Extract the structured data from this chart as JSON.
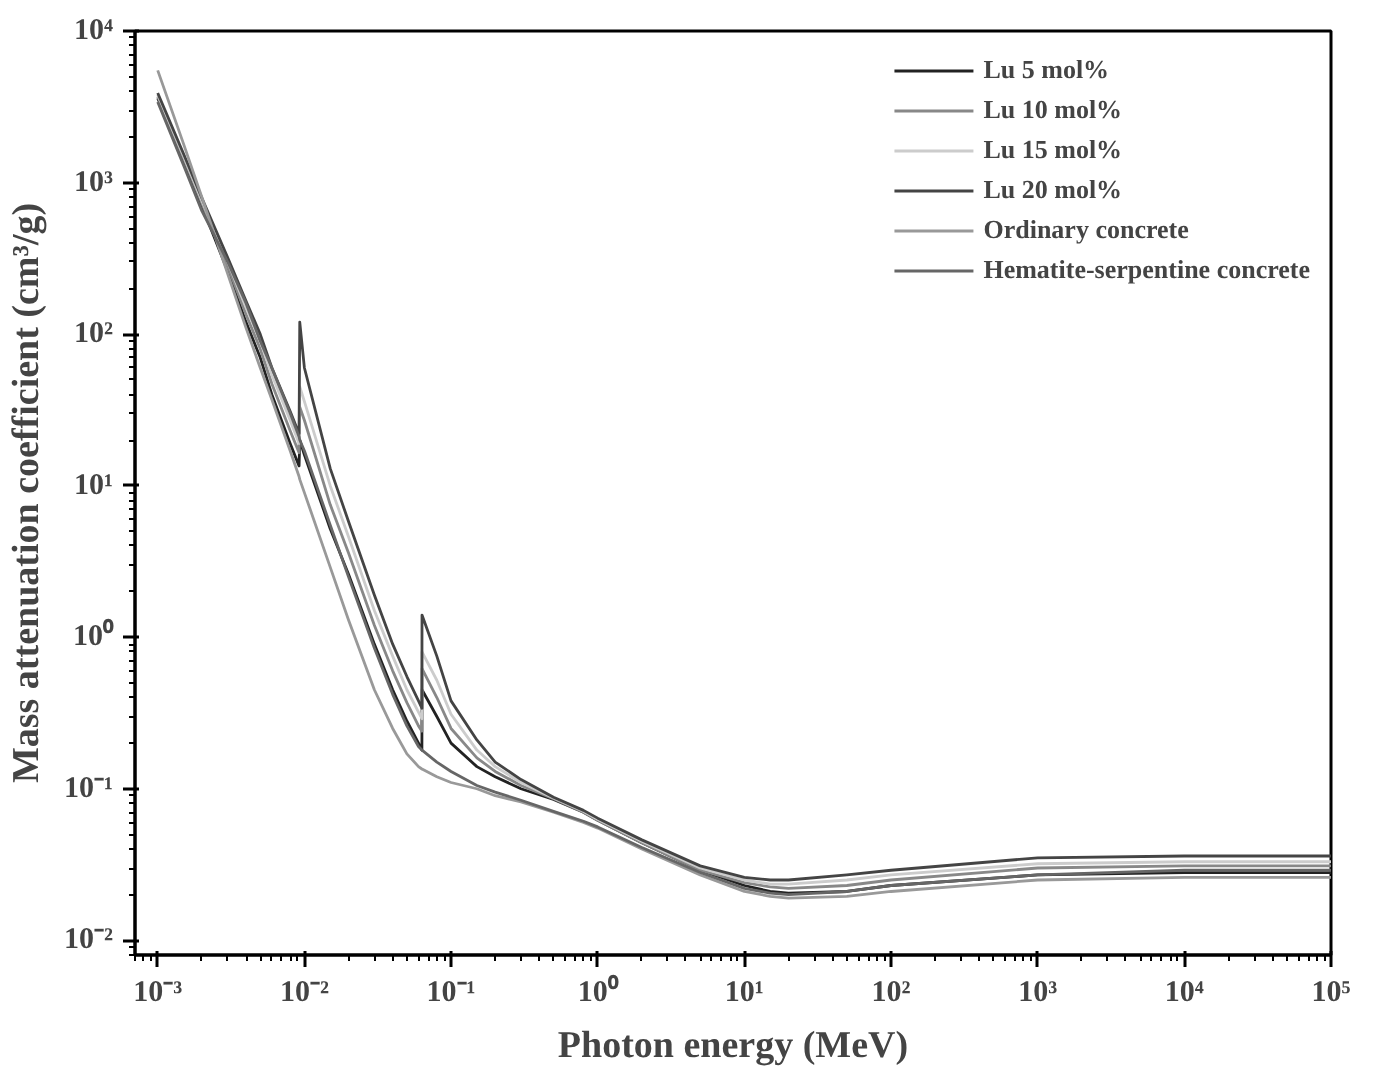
{
  "chart_data": {
    "type": "line",
    "xlabel": "Photon energy (MeV)",
    "ylabel": "Mass attenuation coefficient (cm³/g)",
    "log": "xy",
    "grid": false,
    "legend": "top right",
    "marker": "none",
    "line_style": "solid",
    "x": [
      0.001,
      0.0015,
      0.002,
      0.003,
      0.004,
      0.005,
      0.006,
      0.008,
      0.0092,
      0.0093,
      0.01,
      0.015,
      0.02,
      0.03,
      0.04,
      0.05,
      0.06,
      0.0633,
      0.0634,
      0.08,
      0.1,
      0.15,
      0.2,
      0.3,
      0.5,
      0.8,
      1,
      2,
      5,
      10,
      15,
      20,
      50,
      100,
      1000,
      10000,
      100000
    ],
    "xlim": [
      0.0007,
      100000
    ],
    "ylim": [
      0.008,
      10000
    ],
    "xticks": [
      {
        "value": 0.001,
        "label": "10⁻³"
      },
      {
        "value": 0.01,
        "label": "10⁻²"
      },
      {
        "value": 0.1,
        "label": "10⁻¹"
      },
      {
        "value": 1,
        "label": "10⁰"
      },
      {
        "value": 10,
        "label": "10¹"
      },
      {
        "value": 100,
        "label": "10²"
      },
      {
        "value": 1000,
        "label": "10³"
      },
      {
        "value": 10000,
        "label": "10⁴"
      },
      {
        "value": 100000,
        "label": "10⁵"
      }
    ],
    "yticks": [
      {
        "value": 0.01,
        "label": "10⁻²"
      },
      {
        "value": 0.1,
        "label": "10⁻¹"
      },
      {
        "value": 1,
        "label": "10⁰"
      },
      {
        "value": 10,
        "label": "10¹"
      },
      {
        "value": 100,
        "label": "10²"
      },
      {
        "value": 1000,
        "label": "10³"
      },
      {
        "value": 10000,
        "label": "10⁴"
      }
    ],
    "series": [
      {
        "name": "Lu 5 mol%",
        "color": "#222222",
        "values": [
          3600,
          1400,
          700,
          260,
          120,
          70,
          40,
          19,
          13.5,
          20,
          16,
          5.2,
          2.6,
          0.9,
          0.45,
          0.28,
          0.2,
          0.18,
          0.45,
          0.3,
          0.2,
          0.14,
          0.12,
          0.1,
          0.085,
          0.07,
          0.062,
          0.044,
          0.029,
          0.023,
          0.021,
          0.0205,
          0.021,
          0.023,
          0.027,
          0.028,
          0.028
        ]
      },
      {
        "name": "Lu 10 mol%",
        "color": "#888888",
        "values": [
          3700,
          1450,
          730,
          280,
          135,
          80,
          47,
          23,
          16.5,
          33,
          27,
          7.5,
          3.6,
          1.2,
          0.6,
          0.37,
          0.26,
          0.24,
          0.62,
          0.4,
          0.25,
          0.16,
          0.13,
          0.105,
          0.086,
          0.07,
          0.062,
          0.044,
          0.029,
          0.024,
          0.0225,
          0.022,
          0.023,
          0.025,
          0.03,
          0.031,
          0.031
        ]
      },
      {
        "name": "Lu 15 mol%",
        "color": "#cccccc",
        "values": [
          3800,
          1500,
          760,
          300,
          150,
          90,
          54,
          27,
          19,
          45,
          36,
          10,
          4.6,
          1.5,
          0.75,
          0.45,
          0.32,
          0.29,
          0.8,
          0.52,
          0.31,
          0.18,
          0.14,
          0.11,
          0.087,
          0.071,
          0.063,
          0.045,
          0.03,
          0.025,
          0.0235,
          0.0235,
          0.025,
          0.027,
          0.032,
          0.033,
          0.033
        ]
      },
      {
        "name": "Lu 20 mol%",
        "color": "#444444",
        "values": [
          3900,
          1550,
          790,
          320,
          165,
          100,
          60,
          31,
          22,
          120,
          60,
          13,
          5.8,
          1.9,
          0.9,
          0.55,
          0.38,
          0.34,
          1.4,
          0.75,
          0.38,
          0.21,
          0.15,
          0.115,
          0.088,
          0.072,
          0.064,
          0.046,
          0.031,
          0.026,
          0.025,
          0.025,
          0.027,
          0.029,
          0.035,
          0.036,
          0.036
        ]
      },
      {
        "name": "Ordinary concrete",
        "color": "#999999",
        "values": [
          5500,
          1800,
          800,
          250,
          110,
          60,
          37,
          17,
          11.5,
          11,
          9,
          2.9,
          1.3,
          0.45,
          0.25,
          0.17,
          0.14,
          0.135,
          0.135,
          0.12,
          0.11,
          0.1,
          0.09,
          0.082,
          0.07,
          0.06,
          0.055,
          0.04,
          0.027,
          0.021,
          0.0195,
          0.019,
          0.0195,
          0.021,
          0.025,
          0.026,
          0.026
        ]
      },
      {
        "name": "Hematite-serpentine concrete",
        "color": "#666666",
        "values": [
          3400,
          1300,
          650,
          300,
          160,
          90,
          60,
          30,
          21,
          20,
          17,
          5.5,
          2.5,
          0.85,
          0.42,
          0.26,
          0.19,
          0.18,
          0.18,
          0.15,
          0.13,
          0.105,
          0.095,
          0.084,
          0.071,
          0.061,
          0.056,
          0.041,
          0.028,
          0.022,
          0.0205,
          0.02,
          0.021,
          0.023,
          0.027,
          0.029,
          0.029
        ]
      }
    ]
  }
}
